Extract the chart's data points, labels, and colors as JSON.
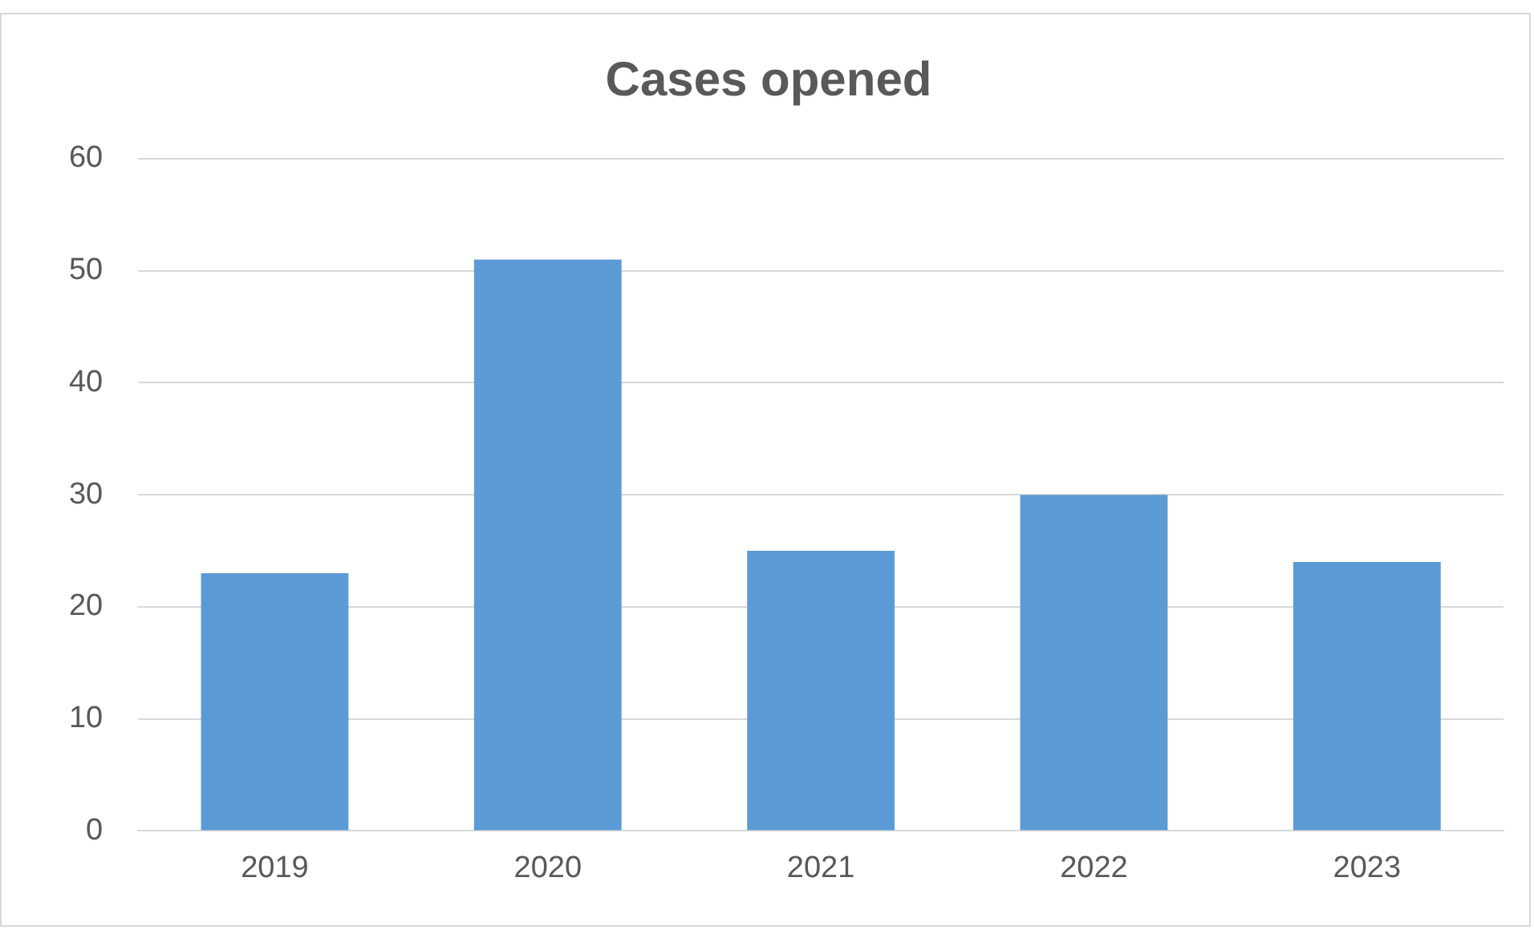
{
  "chart_data": {
    "type": "bar",
    "title": "Cases opened",
    "categories": [
      "2019",
      "2020",
      "2021",
      "2022",
      "2023"
    ],
    "values": [
      23,
      51,
      25,
      30,
      24
    ],
    "color": "#5b9bd5",
    "ylim": [
      0,
      60
    ],
    "yticks": [
      0,
      10,
      20,
      30,
      40,
      50,
      60
    ],
    "grid": "y",
    "legend": false
  }
}
